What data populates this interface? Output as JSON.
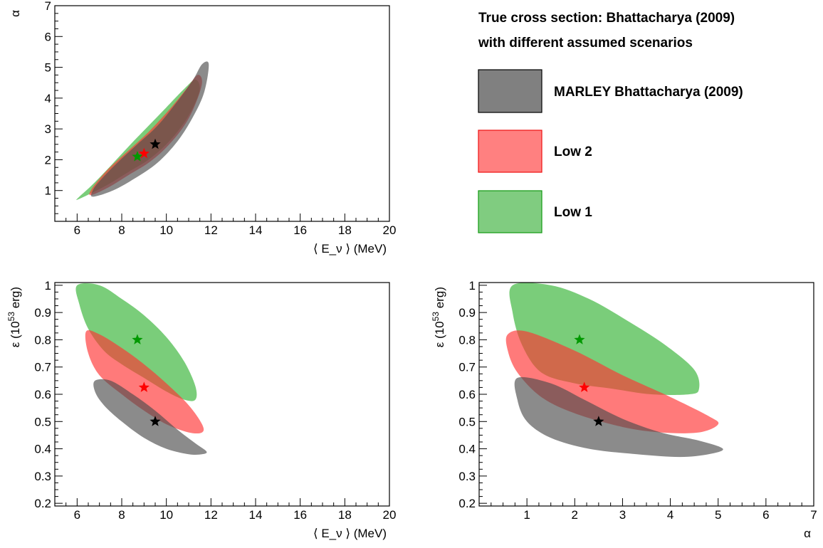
{
  "legend": {
    "title_line1": "True cross section: Bhattacharya (2009)",
    "title_line2": "with different assumed scenarios",
    "entries": [
      {
        "label": "MARLEY Bhattacharya (2009)",
        "color": "#4d4d4d",
        "edge": "#000000",
        "key": "marley"
      },
      {
        "label": "Low 2",
        "color": "#ff4d4d",
        "edge": "#ee1111",
        "key": "low2"
      },
      {
        "label": "Low 1",
        "color": "#4dbd4d",
        "edge": "#119911",
        "key": "low1"
      }
    ]
  },
  "colors": {
    "marley_fill": "#4d4d4d",
    "low2_fill": "#ff3333",
    "low1_fill": "#33b233",
    "marley_star": "#000000",
    "low2_star": "#ff0000",
    "low1_star": "#009900"
  },
  "chart_data": [
    {
      "id": "alpha_vs_E",
      "type": "area",
      "xlabel": "⟨ E_ν ⟩ (MeV)",
      "ylabel": "α",
      "xlim": [
        5,
        20
      ],
      "ylim": [
        0,
        7
      ],
      "xticks": [
        6,
        8,
        10,
        12,
        14,
        16,
        18,
        20
      ],
      "yticks": [
        1,
        2,
        3,
        4,
        5,
        6,
        7
      ],
      "series": [
        {
          "name": "Low 1",
          "key": "low1",
          "region": [
            [
              6.0,
              0.7
            ],
            [
              6.6,
              0.9
            ],
            [
              7.4,
              1.2
            ],
            [
              8.3,
              1.6
            ],
            [
              9.2,
              2.0
            ],
            [
              10.0,
              2.5
            ],
            [
              10.7,
              3.1
            ],
            [
              11.2,
              3.7
            ],
            [
              11.5,
              4.3
            ],
            [
              11.3,
              4.6
            ],
            [
              10.8,
              4.3
            ],
            [
              10.0,
              3.7
            ],
            [
              9.2,
              3.1
            ],
            [
              8.4,
              2.5
            ],
            [
              7.5,
              1.8
            ],
            [
              6.7,
              1.2
            ],
            [
              6.1,
              0.8
            ]
          ],
          "best_fit": [
            8.7,
            2.1
          ]
        },
        {
          "name": "Low 2",
          "key": "low2",
          "region": [
            [
              6.6,
              0.85
            ],
            [
              7.4,
              1.1
            ],
            [
              8.3,
              1.5
            ],
            [
              9.2,
              1.9
            ],
            [
              10.0,
              2.4
            ],
            [
              10.8,
              3.1
            ],
            [
              11.3,
              3.8
            ],
            [
              11.6,
              4.5
            ],
            [
              11.4,
              4.75
            ],
            [
              10.9,
              4.3
            ],
            [
              10.1,
              3.6
            ],
            [
              9.2,
              2.9
            ],
            [
              8.3,
              2.3
            ],
            [
              7.4,
              1.7
            ],
            [
              6.7,
              1.1
            ]
          ],
          "best_fit": [
            9.0,
            2.2
          ]
        },
        {
          "name": "MARLEY Bhattacharya (2009)",
          "key": "marley",
          "region": [
            [
              6.7,
              0.8
            ],
            [
              7.6,
              1.0
            ],
            [
              8.6,
              1.4
            ],
            [
              9.6,
              1.9
            ],
            [
              10.5,
              2.6
            ],
            [
              11.2,
              3.4
            ],
            [
              11.7,
              4.2
            ],
            [
              11.9,
              5.1
            ],
            [
              11.6,
              5.1
            ],
            [
              11.2,
              4.6
            ],
            [
              10.5,
              3.9
            ],
            [
              9.6,
              3.1
            ],
            [
              8.7,
              2.5
            ],
            [
              7.8,
              1.9
            ],
            [
              7.0,
              1.3
            ],
            [
              6.7,
              1.0
            ]
          ],
          "best_fit": [
            9.5,
            2.5
          ]
        }
      ]
    },
    {
      "id": "eps_vs_E",
      "type": "area",
      "xlabel": "⟨ E_ν ⟩ (MeV)",
      "ylabel": "ε (10^53 erg)",
      "xlim": [
        5,
        20
      ],
      "ylim": [
        0.19,
        1.01
      ],
      "xticks": [
        6,
        8,
        10,
        12,
        14,
        16,
        18,
        20
      ],
      "yticks": [
        0.2,
        0.3,
        0.4,
        0.5,
        0.6,
        0.7,
        0.8,
        0.9,
        1
      ],
      "series": [
        {
          "name": "Low 1",
          "key": "low1",
          "region": [
            [
              6.0,
              1.0
            ],
            [
              7.0,
              1.0
            ],
            [
              8.0,
              0.95
            ],
            [
              9.0,
              0.89
            ],
            [
              10.0,
              0.81
            ],
            [
              10.8,
              0.72
            ],
            [
              11.3,
              0.63
            ],
            [
              11.3,
              0.58
            ],
            [
              10.8,
              0.58
            ],
            [
              10.0,
              0.61
            ],
            [
              9.0,
              0.66
            ],
            [
              8.0,
              0.71
            ],
            [
              7.2,
              0.76
            ],
            [
              6.5,
              0.84
            ],
            [
              6.1,
              0.93
            ]
          ],
          "best_fit": [
            8.7,
            0.8
          ]
        },
        {
          "name": "Low 2",
          "key": "low2",
          "region": [
            [
              6.4,
              0.83
            ],
            [
              7.0,
              0.82
            ],
            [
              8.0,
              0.77
            ],
            [
              9.0,
              0.71
            ],
            [
              10.0,
              0.64
            ],
            [
              11.0,
              0.56
            ],
            [
              11.6,
              0.49
            ],
            [
              11.6,
              0.46
            ],
            [
              11.0,
              0.46
            ],
            [
              10.0,
              0.49
            ],
            [
              9.0,
              0.54
            ],
            [
              8.0,
              0.6
            ],
            [
              7.0,
              0.67
            ],
            [
              6.5,
              0.75
            ]
          ],
          "best_fit": [
            9.0,
            0.625
          ]
        },
        {
          "name": "MARLEY Bhattacharya (2009)",
          "key": "marley",
          "region": [
            [
              6.8,
              0.65
            ],
            [
              7.5,
              0.65
            ],
            [
              8.5,
              0.6
            ],
            [
              9.5,
              0.54
            ],
            [
              10.5,
              0.47
            ],
            [
              11.3,
              0.42
            ],
            [
              11.8,
              0.39
            ],
            [
              11.6,
              0.38
            ],
            [
              11.0,
              0.38
            ],
            [
              10.0,
              0.4
            ],
            [
              9.0,
              0.44
            ],
            [
              8.0,
              0.5
            ],
            [
              7.2,
              0.56
            ],
            [
              6.8,
              0.61
            ]
          ],
          "best_fit": [
            9.5,
            0.5
          ]
        }
      ]
    },
    {
      "id": "eps_vs_alpha",
      "type": "area",
      "xlabel": "α",
      "ylabel": "ε (10^53 erg)",
      "xlim": [
        0,
        7
      ],
      "ylim": [
        0.19,
        1.01
      ],
      "xticks": [
        1,
        2,
        3,
        4,
        5,
        6,
        7
      ],
      "yticks": [
        0.2,
        0.3,
        0.4,
        0.5,
        0.6,
        0.7,
        0.8,
        0.9,
        1
      ],
      "series": [
        {
          "name": "Low 1",
          "key": "low1",
          "region": [
            [
              0.7,
              1.0
            ],
            [
              1.5,
              1.0
            ],
            [
              2.3,
              0.95
            ],
            [
              3.1,
              0.87
            ],
            [
              3.9,
              0.78
            ],
            [
              4.5,
              0.69
            ],
            [
              4.6,
              0.62
            ],
            [
              4.4,
              0.6
            ],
            [
              3.6,
              0.6
            ],
            [
              2.8,
              0.62
            ],
            [
              2.0,
              0.64
            ],
            [
              1.3,
              0.68
            ],
            [
              0.9,
              0.78
            ],
            [
              0.7,
              0.9
            ]
          ],
          "best_fit": [
            2.1,
            0.8
          ]
        },
        {
          "name": "Low 2",
          "key": "low2",
          "region": [
            [
              0.6,
              0.82
            ],
            [
              1.0,
              0.83
            ],
            [
              2.0,
              0.76
            ],
            [
              3.0,
              0.67
            ],
            [
              4.0,
              0.59
            ],
            [
              4.8,
              0.52
            ],
            [
              5.0,
              0.49
            ],
            [
              4.6,
              0.46
            ],
            [
              3.8,
              0.46
            ],
            [
              3.0,
              0.48
            ],
            [
              2.0,
              0.53
            ],
            [
              1.3,
              0.59
            ],
            [
              0.8,
              0.68
            ],
            [
              0.6,
              0.76
            ]
          ],
          "best_fit": [
            2.2,
            0.625
          ]
        },
        {
          "name": "MARLEY Bhattacharya (2009)",
          "key": "marley",
          "region": [
            [
              0.8,
              0.66
            ],
            [
              1.5,
              0.64
            ],
            [
              2.2,
              0.58
            ],
            [
              3.0,
              0.51
            ],
            [
              3.8,
              0.46
            ],
            [
              4.6,
              0.43
            ],
            [
              5.1,
              0.4
            ],
            [
              4.8,
              0.38
            ],
            [
              4.2,
              0.37
            ],
            [
              3.3,
              0.38
            ],
            [
              2.3,
              0.4
            ],
            [
              1.5,
              0.44
            ],
            [
              1.0,
              0.5
            ],
            [
              0.8,
              0.58
            ]
          ],
          "best_fit": [
            2.5,
            0.5
          ]
        }
      ]
    }
  ]
}
